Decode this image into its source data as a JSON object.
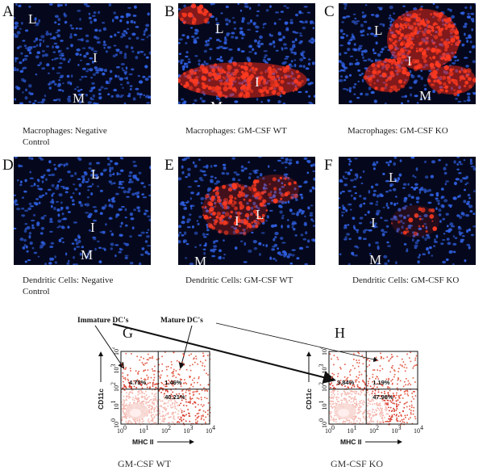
{
  "panels": [
    {
      "id": "A",
      "caption_lines": [
        "Macrophages: Negative",
        "Control"
      ],
      "tissue": [
        "L",
        "I",
        "M"
      ],
      "stain": "none"
    },
    {
      "id": "B",
      "caption_lines": [
        "Macrophages: GM-CSF WT"
      ],
      "tissue": [
        "L",
        "I",
        "M"
      ],
      "stain": "band"
    },
    {
      "id": "C",
      "caption_lines": [
        "Macrophages: GM-CSF KO"
      ],
      "tissue": [
        "L",
        "I",
        "M"
      ],
      "stain": "blob"
    },
    {
      "id": "D",
      "caption_lines": [
        "Dendritic Cells: Negative",
        "Control"
      ],
      "tissue": [
        "L",
        "I",
        "M"
      ],
      "stain": "none"
    },
    {
      "id": "E",
      "caption_lines": [
        "Dendritic Cells: GM-CSF WT"
      ],
      "tissue": [
        "L",
        "I",
        "M"
      ],
      "stain": "cluster"
    },
    {
      "id": "F",
      "caption_lines": [
        "Dendritic Cells: GM-CSF KO"
      ],
      "tissue": [
        "L",
        "I",
        "M"
      ],
      "stain": "faint"
    }
  ],
  "flow": {
    "gate_labels": {
      "immature": "Immature DC's",
      "mature": "Mature DC's"
    },
    "ticks": [
      "10",
      "0",
      "10",
      "1",
      "10",
      "2",
      "10",
      "3",
      "10",
      "4"
    ],
    "ylabel": "CD11c",
    "xlabel": "MHC II",
    "plots": [
      {
        "id": "G",
        "subtitle": "GM-CSF WT",
        "quadrants": {
          "ul": "4.75%",
          "ur": "1.46%",
          "ll": "",
          "lr": "40.21%"
        }
      },
      {
        "id": "H",
        "subtitle": "GM-CSF KO",
        "quadrants": {
          "ul": "3.84%",
          "ur": "1.19%",
          "ll": "",
          "lr": "47.98%"
        }
      }
    ]
  },
  "colors": {
    "nuclei": "#2f5fe0",
    "stain": "#ff2a18",
    "tissue_bg": "#05081c",
    "flow_high": "#d83a2a"
  }
}
